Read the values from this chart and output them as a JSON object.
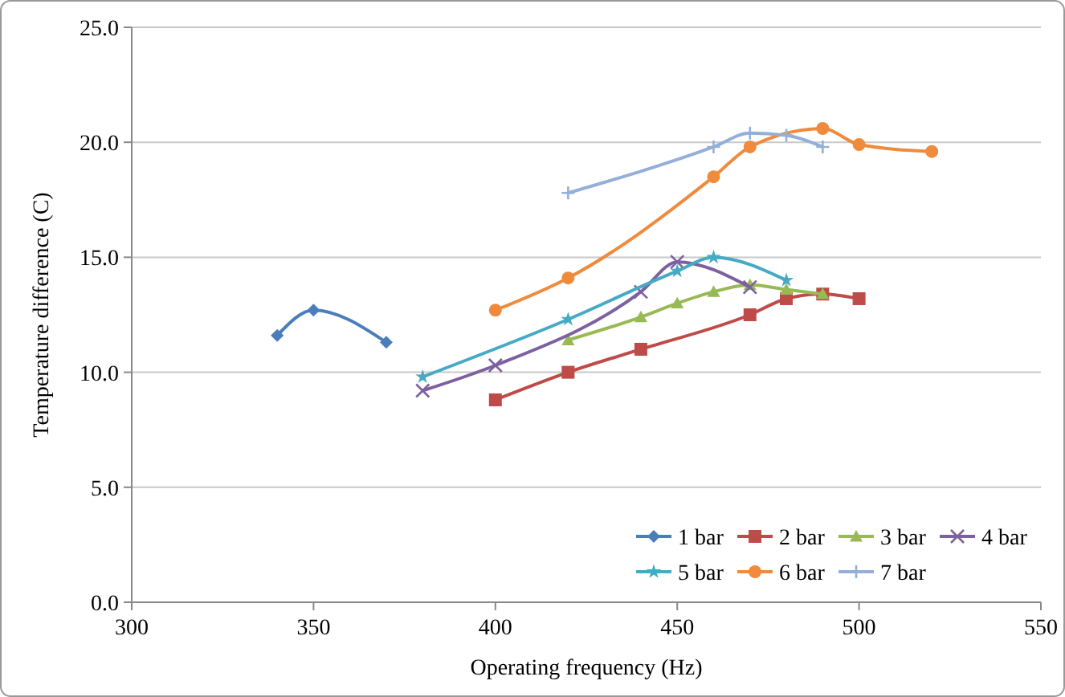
{
  "chart_data": {
    "type": "line",
    "xlabel": "Operating frequency (Hz)",
    "ylabel": "Temperature difference (C)",
    "xlim": [
      300,
      550
    ],
    "xticks": [
      300,
      350,
      400,
      450,
      500,
      550
    ],
    "ylim": [
      0,
      25
    ],
    "yticks": [
      {
        "value": 0,
        "label": "0.0"
      },
      {
        "value": 5,
        "label": "5.0"
      },
      {
        "value": 10,
        "label": "10.0"
      },
      {
        "value": 15,
        "label": "15.0"
      },
      {
        "value": 20,
        "label": "20.0"
      },
      {
        "value": 25,
        "label": "25.0"
      }
    ],
    "grid": "y",
    "legend": "bottom right",
    "series": [
      {
        "name": "1 bar",
        "color": "#4a7ebb",
        "marker": "diamond",
        "x": [
          340,
          350,
          370
        ],
        "values": [
          11.6,
          12.7,
          11.3
        ]
      },
      {
        "name": "2 bar",
        "color": "#be4b48",
        "marker": "square",
        "x": [
          400,
          420,
          440,
          470,
          480,
          490,
          500
        ],
        "values": [
          8.8,
          10.0,
          11.0,
          12.5,
          13.2,
          13.4,
          13.2
        ]
      },
      {
        "name": "3 bar",
        "color": "#98b954",
        "marker": "triangle",
        "x": [
          420,
          440,
          450,
          460,
          470,
          480,
          490
        ],
        "values": [
          11.4,
          12.4,
          13.0,
          13.5,
          13.8,
          13.6,
          13.4
        ]
      },
      {
        "name": "4 bar",
        "color": "#7d60a0",
        "marker": "cross",
        "x": [
          380,
          400,
          440,
          450,
          470
        ],
        "values": [
          9.2,
          10.3,
          13.5,
          14.8,
          13.7
        ]
      },
      {
        "name": "5 bar",
        "color": "#46aac5",
        "marker": "star",
        "x": [
          380,
          420,
          450,
          460,
          480
        ],
        "values": [
          9.8,
          12.3,
          14.4,
          15.0,
          14.0
        ]
      },
      {
        "name": "6 bar",
        "color": "#f08a3c",
        "marker": "circle",
        "x": [
          400,
          420,
          460,
          470,
          490,
          500,
          520
        ],
        "values": [
          12.7,
          14.1,
          18.5,
          19.8,
          20.6,
          19.9,
          19.6
        ]
      },
      {
        "name": "7 bar",
        "color": "#94afd8",
        "marker": "plus",
        "x": [
          420,
          460,
          470,
          480,
          490
        ],
        "values": [
          17.8,
          19.8,
          20.4,
          20.3,
          19.8
        ]
      }
    ]
  }
}
